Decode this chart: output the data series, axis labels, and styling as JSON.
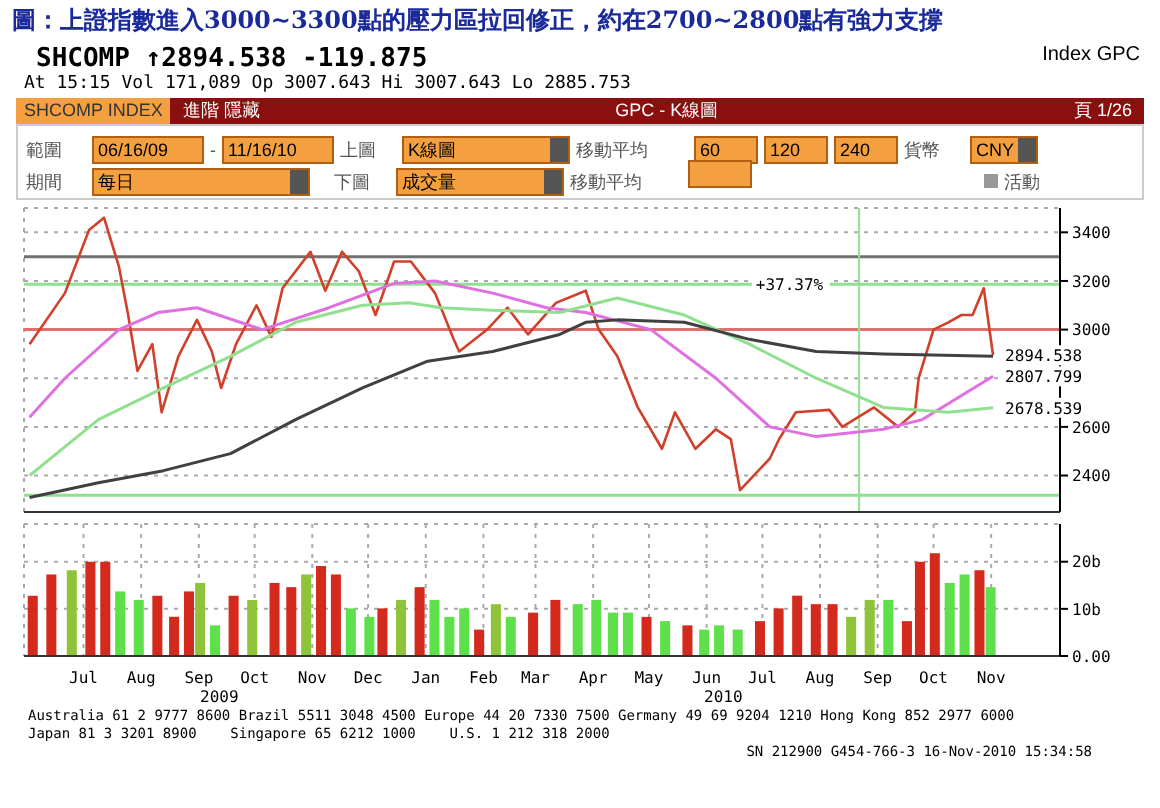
{
  "chart_data": [
    {
      "type": "line",
      "title": "圖：上證指數進入3000~3300點的壓力區拉回修正，約在2700~2800點有強力支撐",
      "subtitle": "SHCOMP ↑2894.538 -119.875",
      "annotations": [
        "Index GPC",
        "At 15:15 Vol 171,089 Op 3007.643 Hi 3007.643 Lo 2885.753",
        "SHCOMP INDEX",
        "進階",
        "隱藏",
        "GPC - K線圖",
        "頁 1/26",
        "範圍",
        "06/16/09",
        "-",
        "11/16/10",
        "上圖",
        "K線圖",
        "移動平均",
        "60",
        "120",
        "240",
        "貨幣",
        "CNY",
        "期間",
        "每日",
        "下圖",
        "成交量",
        "移動平均",
        "活動",
        {
          "text": "+37.37%",
          "x": "2010-07-05",
          "y": 3186
        },
        {
          "text": "2894.538",
          "x": "2010-11-16",
          "y": 2894.538
        },
        {
          "text": "2807.799",
          "x": "2010-11-16",
          "y": 2807.799
        },
        {
          "text": "2678.539",
          "x": "2010-11-16",
          "y": 2678.539
        }
      ],
      "series": [
        {
          "color": "#d0402a",
          "x": [
            "2009-06-16",
            "2009-07-05",
            "2009-07-18",
            "2009-07-26",
            "2009-08-03",
            "2009-08-08",
            "2009-08-13",
            "2009-08-21",
            "2009-08-26",
            "2009-09-04",
            "2009-09-14",
            "2009-09-22",
            "2009-09-27",
            "2009-10-05",
            "2009-10-16",
            "2009-10-24",
            "2009-10-30",
            "2009-11-14",
            "2009-11-22",
            "2009-12-01",
            "2009-12-10",
            "2009-12-19",
            "2009-12-29",
            "2010-01-07",
            "2010-01-20",
            "2010-01-30",
            "2010-02-02",
            "2010-02-17",
            "2010-02-28",
            "2010-03-11",
            "2010-03-26",
            "2010-04-11",
            "2010-04-18",
            "2010-04-28",
            "2010-05-09",
            "2010-05-22",
            "2010-05-29",
            "2010-06-09",
            "2010-06-20",
            "2010-06-28",
            "2010-07-03",
            "2010-07-19",
            "2010-07-24",
            "2010-08-02",
            "2010-08-20",
            "2010-08-27",
            "2010-09-13",
            "2010-09-26",
            "2010-10-05",
            "2010-10-07",
            "2010-10-15",
            "2010-10-23",
            "2010-10-30",
            "2010-11-05",
            "2010-11-11",
            "2010-11-16"
          ],
          "values": [
            2940,
            3150,
            3410,
            3460,
            3260,
            3060,
            2830,
            2940,
            2660,
            2890,
            3040,
            2910,
            2760,
            2940,
            3100,
            2970,
            3170,
            3320,
            3160,
            3320,
            3240,
            3060,
            3280,
            3280,
            3150,
            2960,
            2910,
            3000,
            3090,
            2980,
            3110,
            3160,
            3000,
            2890,
            2680,
            2510,
            2660,
            2510,
            2590,
            2550,
            2340,
            2470,
            2550,
            2660,
            2670,
            2600,
            2680,
            2600,
            2660,
            2800,
            3000,
            3030,
            3060,
            3060,
            3170,
            2894.538
          ]
        },
        {
          "color": "#e070e0",
          "x": [
            "2009-06-16",
            "2009-07-05",
            "2009-08-03",
            "2009-08-24",
            "2009-09-14",
            "2009-10-19",
            "2009-11-24",
            "2009-12-29",
            "2010-01-20",
            "2010-02-20",
            "2010-03-21",
            "2010-04-11",
            "2010-05-16",
            "2010-06-20",
            "2010-07-19",
            "2010-08-13",
            "2010-09-18",
            "2010-10-09",
            "2010-11-16"
          ],
          "values": [
            2640,
            2800,
            3000,
            3070,
            3090,
            3000,
            3090,
            3190,
            3200,
            3150,
            3090,
            3070,
            3000,
            2800,
            2600,
            2560,
            2590,
            2630,
            2807.799
          ]
        },
        {
          "color": "#90e090",
          "x": [
            "2009-06-16",
            "2009-07-23",
            "2009-08-27",
            "2009-10-02",
            "2009-11-06",
            "2009-12-12",
            "2010-01-06",
            "2010-01-23",
            "2010-02-20",
            "2010-03-28",
            "2010-04-28",
            "2010-06-03",
            "2010-07-08",
            "2010-08-13",
            "2010-09-18",
            "2010-10-23",
            "2010-11-16"
          ],
          "values": [
            2400,
            2630,
            2760,
            2890,
            3030,
            3100,
            3110,
            3090,
            3080,
            3070,
            3130,
            3060,
            2940,
            2800,
            2680,
            2660,
            2678.539
          ]
        },
        {
          "color": "#404040",
          "x": [
            "2009-06-16",
            "2009-07-23",
            "2009-08-27",
            "2009-10-02",
            "2009-11-06",
            "2009-12-12",
            "2010-01-16",
            "2010-02-20",
            "2010-03-28",
            "2010-04-11",
            "2010-04-28",
            "2010-06-03",
            "2010-07-08",
            "2010-08-13",
            "2010-09-18",
            "2010-11-16"
          ],
          "values": [
            2310,
            2370,
            2420,
            2490,
            2630,
            2760,
            2870,
            2910,
            2980,
            3030,
            3040,
            3030,
            2960,
            2910,
            2900,
            2890
          ]
        }
      ],
      "ref_lines": [
        {
          "axis": "y",
          "value": 3300,
          "color": "#707070"
        },
        {
          "axis": "y",
          "value": 3000,
          "color": "#e07070"
        },
        {
          "axis": "y",
          "value": 3186,
          "color": "#90e090"
        },
        {
          "axis": "y",
          "value": 2319,
          "color": "#90e090"
        },
        {
          "axis": "x",
          "value": "2010-09-05",
          "color": "#90e090"
        }
      ],
      "xlim": [
        "2009-06-13",
        "2010-12-22"
      ],
      "xticks": [
        {
          "value": "2009-07-15",
          "label": null
        },
        {
          "value": "2009-08-15",
          "label": null
        },
        {
          "value": "2009-09-15",
          "label": null
        },
        {
          "value": "2009-10-15",
          "label": null
        },
        {
          "value": "2009-11-15",
          "label": null
        },
        {
          "value": "2009-12-15",
          "label": null
        },
        {
          "value": "2010-01-15",
          "label": null
        },
        {
          "value": "2010-02-15",
          "label": null
        },
        {
          "value": "2010-03-15",
          "label": null
        },
        {
          "value": "2010-04-15",
          "label": null
        },
        {
          "value": "2010-05-15",
          "label": null
        },
        {
          "value": "2010-06-15",
          "label": null
        },
        {
          "value": "2010-07-15",
          "label": null
        },
        {
          "value": "2010-08-15",
          "label": null
        },
        {
          "value": "2010-09-15",
          "label": null
        },
        {
          "value": "2010-10-15",
          "label": null
        },
        {
          "value": "2010-11-15",
          "label": null
        }
      ],
      "ylim": [
        2250,
        3500
      ],
      "yticks": [
        2400,
        2600,
        {
          "value": 2800,
          "label": null
        },
        3000,
        3200,
        3400
      ],
      "grid": true,
      "tick_labels": "y"
    },
    {
      "type": "bar",
      "annotations": [
        "2009",
        "2010",
        "Australia 61 2 9777 8600 Brazil 5511 3048 4500 Europe 44 20 7330 7500 Germany 49 69 9204 1210 Hong Kong 852 2977 6000",
        "Japan 81 3 3201 8900    Singapore 65 6212 1000    U.S. 1 212 318 2000",
        "SN 212900 G454-766-3 16-Nov-2010 15:34:58"
      ],
      "x": [
        "2009-06-18",
        "2009-06-28",
        "2009-07-09",
        "2009-07-19",
        "2009-07-27",
        "2009-08-04",
        "2009-08-14",
        "2009-08-24",
        "2009-09-02",
        "2009-09-10",
        "2009-09-16",
        "2009-09-24",
        "2009-10-04",
        "2009-10-14",
        "2009-10-26",
        "2009-11-04",
        "2009-11-12",
        "2009-11-20",
        "2009-11-28",
        "2009-12-06",
        "2009-12-16",
        "2009-12-23",
        "2010-01-02",
        "2010-01-12",
        "2010-01-20",
        "2010-01-28",
        "2010-02-05",
        "2010-02-13",
        "2010-02-22",
        "2010-03-02",
        "2010-03-14",
        "2010-03-26",
        "2010-04-07",
        "2010-04-17",
        "2010-04-26",
        "2010-05-04",
        "2010-05-14",
        "2010-05-24",
        "2010-06-05",
        "2010-06-14",
        "2010-06-22",
        "2010-07-02",
        "2010-07-14",
        "2010-07-24",
        "2010-08-03",
        "2010-08-13",
        "2010-08-22",
        "2010-09-01",
        "2010-09-11",
        "2010-09-21",
        "2010-10-01",
        "2010-10-08",
        "2010-10-16",
        "2010-10-24",
        "2010-11-01",
        "2010-11-09",
        "2010-11-15"
      ],
      "values": [
        12.8,
        17.3,
        18.2,
        20,
        20,
        13.7,
        11.9,
        12.8,
        8.3,
        13.7,
        15.5,
        6.5,
        12.8,
        11.9,
        15.5,
        14.6,
        17.3,
        19.1,
        17.3,
        10.1,
        8.3,
        10.1,
        11.9,
        14.6,
        11.9,
        8.3,
        10.1,
        5.6,
        11,
        8.3,
        9.2,
        11.9,
        11,
        11.9,
        9.2,
        9.2,
        8.3,
        7.4,
        6.5,
        5.6,
        6.5,
        5.6,
        7.4,
        10.1,
        12.8,
        11,
        11,
        8.3,
        11.9,
        11.9,
        7.4,
        20,
        21.8,
        15.5,
        17.3,
        18.2,
        14.6
      ],
      "colors": [
        "#d42a1e",
        "#d42a1e",
        "#8fc43a",
        "#d42a1e",
        "#d42a1e",
        "#5ee04a",
        "#5ee04a",
        "#d42a1e",
        "#d42a1e",
        "#d42a1e",
        "#8fc43a",
        "#5ee04a",
        "#d42a1e",
        "#8fc43a",
        "#d42a1e",
        "#d42a1e",
        "#8fc43a",
        "#d42a1e",
        "#d42a1e",
        "#5ee04a",
        "#5ee04a",
        "#d42a1e",
        "#8fc43a",
        "#d42a1e",
        "#5ee04a",
        "#5ee04a",
        "#5ee04a",
        "#d42a1e",
        "#8fc43a",
        "#5ee04a",
        "#d42a1e",
        "#d42a1e",
        "#5ee04a",
        "#5ee04a",
        "#5ee04a",
        "#5ee04a",
        "#d42a1e",
        "#5ee04a",
        "#d42a1e",
        "#5ee04a",
        "#5ee04a",
        "#5ee04a",
        "#d42a1e",
        "#d42a1e",
        "#d42a1e",
        "#d42a1e",
        "#d42a1e",
        "#8fc43a",
        "#8fc43a",
        "#5ee04a",
        "#d42a1e",
        "#d42a1e",
        "#d42a1e",
        "#5ee04a",
        "#5ee04a",
        "#d42a1e",
        "#5ee04a"
      ],
      "xlim": [
        "2009-06-13",
        "2010-12-22"
      ],
      "xticks": [
        {
          "value": "2009-07-15",
          "label": "Jul"
        },
        {
          "value": "2009-08-15",
          "label": "Aug"
        },
        {
          "value": "2009-09-15",
          "label": "Sep"
        },
        {
          "value": "2009-10-15",
          "label": "Oct"
        },
        {
          "value": "2009-11-15",
          "label": "Nov"
        },
        {
          "value": "2009-12-15",
          "label": "Dec"
        },
        {
          "value": "2010-01-15",
          "label": "Jan"
        },
        {
          "value": "2010-02-15",
          "label": "Feb"
        },
        {
          "value": "2010-03-15",
          "label": "Mar"
        },
        {
          "value": "2010-04-15",
          "label": "Apr"
        },
        {
          "value": "2010-05-15",
          "label": "May"
        },
        {
          "value": "2010-06-15",
          "label": "Jun"
        },
        {
          "value": "2010-07-15",
          "label": "Jul"
        },
        {
          "value": "2010-08-15",
          "label": "Aug"
        },
        {
          "value": "2010-09-15",
          "label": "Sep"
        },
        {
          "value": "2010-10-15",
          "label": "Oct"
        },
        {
          "value": "2010-11-15",
          "label": "Nov"
        }
      ],
      "ylim": [
        0,
        28
      ],
      "yticks": [
        {
          "value": 0,
          "label": "0.00"
        },
        {
          "value": 10,
          "label": "10b"
        },
        {
          "value": 20,
          "label": "20b"
        }
      ],
      "grid": true
    }
  ]
}
